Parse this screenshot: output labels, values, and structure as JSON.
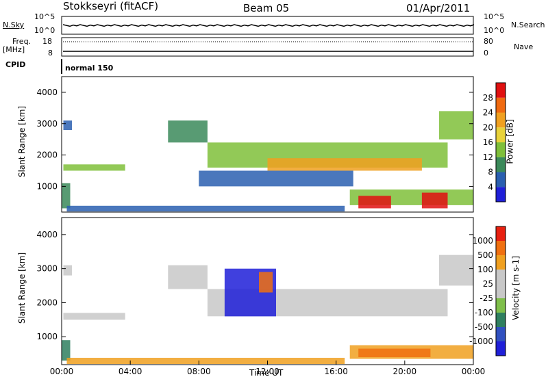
{
  "header": {
    "station": "Stokkseyri (fitACF)",
    "beam": "Beam 05",
    "date": "01/Apr/2011"
  },
  "aux_panels": {
    "nsky_label": "N.Sky",
    "nsearch_label": "N.Search",
    "nsky_ticks": [
      "10^5",
      "10^0"
    ],
    "nsearch_ticks": [
      "10^5",
      "10^0"
    ],
    "freq_label_1": "Freq.",
    "freq_label_2": "[MHz]",
    "freq_ticks": [
      "18",
      "8"
    ],
    "nave_label": "Nave",
    "nave_ticks": [
      "80",
      "0"
    ],
    "cpid_label": "CPID",
    "cpid_value": "normal 150"
  },
  "colors": {
    "power": [
      "#1f1fd8",
      "#2a5fb0",
      "#3b8a5a",
      "#7fbf3a",
      "#e8d23a",
      "#f0a020",
      "#f06a10",
      "#e01010"
    ],
    "velocity": [
      "#1f1fd8",
      "#3050c0",
      "#2f7f5f",
      "#7fbf4a",
      "#c8c8c8",
      "#c8c8c8",
      "#f0a020",
      "#f07010",
      "#e82010"
    ],
    "ground_scatter": "#c0c0c0"
  },
  "chart_data": [
    {
      "type": "heatmap",
      "name": "power",
      "ylabel": "Slant Range [km]",
      "xlabel": "",
      "ylim": [
        180,
        4500
      ],
      "xlim_hours": [
        0,
        24
      ],
      "yticks": [
        "1000",
        "2000",
        "3000",
        "4000"
      ],
      "colorbar_label": "Power [dB]",
      "colorbar_ticks": [
        "4",
        "8",
        "12",
        "16",
        "20",
        "24",
        "28"
      ],
      "colorbar_range": [
        0,
        32
      ],
      "regions": [
        {
          "t0": 0.1,
          "t1": 0.6,
          "r0": 2800,
          "r1": 3100,
          "level": 1
        },
        {
          "t0": 0.1,
          "t1": 3.7,
          "r0": 1500,
          "r1": 1700,
          "level": 3
        },
        {
          "t0": 0.0,
          "t1": 0.5,
          "r0": 300,
          "r1": 1100,
          "level": 2
        },
        {
          "t0": 0.3,
          "t1": 16.5,
          "r0": 200,
          "r1": 380,
          "level": 1
        },
        {
          "t0": 6.2,
          "t1": 8.5,
          "r0": 2400,
          "r1": 3100,
          "level": 2
        },
        {
          "t0": 8.5,
          "t1": 22.5,
          "r0": 1600,
          "r1": 2400,
          "level": 3
        },
        {
          "t0": 12.0,
          "t1": 21.0,
          "r0": 1500,
          "r1": 1900,
          "level": 5
        },
        {
          "t0": 8.0,
          "t1": 17.0,
          "r0": 1000,
          "r1": 1500,
          "level": 1
        },
        {
          "t0": 22.0,
          "t1": 24.0,
          "r0": 2500,
          "r1": 3400,
          "level": 3
        },
        {
          "t0": 16.8,
          "t1": 24.0,
          "r0": 400,
          "r1": 900,
          "level": 3
        },
        {
          "t0": 17.3,
          "t1": 19.2,
          "r0": 300,
          "r1": 700,
          "level": 7
        },
        {
          "t0": 21.0,
          "t1": 22.5,
          "r0": 300,
          "r1": 800,
          "level": 7
        }
      ]
    },
    {
      "type": "heatmap",
      "name": "velocity",
      "ylabel": "Slant Range [km]",
      "xlabel": "Time UT",
      "ylim": [
        180,
        4500
      ],
      "xlim_hours": [
        0,
        24
      ],
      "xticks": [
        "00:00",
        "04:00",
        "08:00",
        "12:00",
        "16:00",
        "20:00",
        "00:00"
      ],
      "yticks": [
        "1000",
        "2000",
        "3000",
        "4000"
      ],
      "colorbar_label": "Velocity [m s-1]",
      "colorbar_ticks": [
        "1000",
        "500",
        "100",
        "25",
        "-25",
        "-100",
        "-500",
        "-1000"
      ],
      "colorbar_range": [
        -1000,
        1000
      ],
      "regions": [
        {
          "t0": 0.1,
          "t1": 0.6,
          "r0": 2800,
          "r1": 3100,
          "level": 4
        },
        {
          "t0": 0.1,
          "t1": 3.7,
          "r0": 1500,
          "r1": 1700,
          "level": 4
        },
        {
          "t0": 0.0,
          "t1": 0.5,
          "r0": 300,
          "r1": 900,
          "level": 2
        },
        {
          "t0": 0.3,
          "t1": 16.5,
          "r0": 200,
          "r1": 380,
          "level": 6
        },
        {
          "t0": 6.2,
          "t1": 8.5,
          "r0": 2400,
          "r1": 3100,
          "level": 4
        },
        {
          "t0": 8.5,
          "t1": 22.5,
          "r0": 1600,
          "r1": 2400,
          "level": 4
        },
        {
          "t0": 9.5,
          "t1": 12.5,
          "r0": 1600,
          "r1": 3000,
          "level": 0
        },
        {
          "t0": 11.5,
          "t1": 12.3,
          "r0": 2300,
          "r1": 2900,
          "level": 7
        },
        {
          "t0": 22.0,
          "t1": 24.0,
          "r0": 2500,
          "r1": 3400,
          "level": 4
        },
        {
          "t0": 16.8,
          "t1": 24.0,
          "r0": 350,
          "r1": 750,
          "level": 6
        },
        {
          "t0": 17.3,
          "t1": 21.5,
          "r0": 400,
          "r1": 650,
          "level": 7
        }
      ]
    }
  ]
}
